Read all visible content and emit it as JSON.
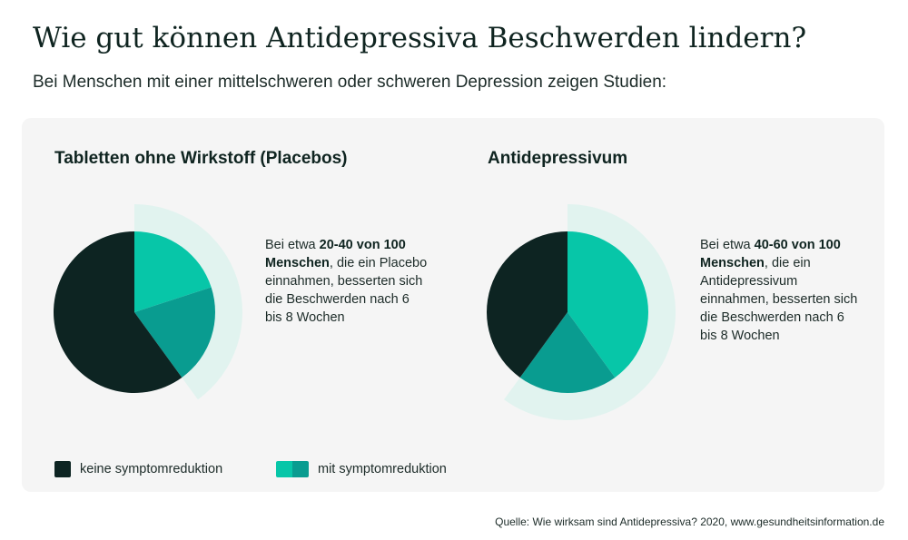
{
  "header": {
    "title": "Wie gut können Antidepressiva Beschwerden lindern?",
    "subtitle": "Bei Menschen mit einer mittelschweren oder schweren Depression zeigen Studien:"
  },
  "colors": {
    "no_reduction": "#0d2422",
    "with_reduction_low": "#07c6a8",
    "with_reduction_high": "#099c90",
    "range_band": "#e1f3ef",
    "panel_bg": "#f5f5f5"
  },
  "chart_data": [
    {
      "type": "pie",
      "title": "Tabletten ohne Wirkstoff (Placebos)",
      "unit": "von 100 Menschen",
      "slices": [
        {
          "label": "mit symptomreduktion",
          "value": 20,
          "color": "#07c6a8"
        },
        {
          "label": "mit symptomreduktion",
          "value": 20,
          "color": "#099c90"
        },
        {
          "label": "keine symptomreduktion",
          "value": 60,
          "color": "#0d2422"
        }
      ],
      "range": [
        20,
        40
      ],
      "description": {
        "prefix": "Bei etwa ",
        "bold": "20-40 von 100 Menschen",
        "suffix": ", die ein Placebo einnahmen, besserten sich die Beschwerden nach 6 bis 8 Wochen"
      }
    },
    {
      "type": "pie",
      "title": "Antidepressivum",
      "unit": "von 100 Menschen",
      "slices": [
        {
          "label": "mit symptomreduktion",
          "value": 40,
          "color": "#07c6a8"
        },
        {
          "label": "mit symptomreduktion",
          "value": 20,
          "color": "#099c90"
        },
        {
          "label": "keine symptomreduktion",
          "value": 40,
          "color": "#0d2422"
        }
      ],
      "range": [
        40,
        60
      ],
      "description": {
        "prefix": "Bei etwa ",
        "bold": "40-60 von 100 Menschen",
        "suffix": ", die ein Antidepressivum einnahmen, besserten sich die Beschwerden nach 6 bis 8 Wochen"
      }
    }
  ],
  "legend": {
    "no_reduction": "keine symptomreduktion",
    "with_reduction": "mit symptomreduktion"
  },
  "source": "Quelle: Wie wirksam sind Antidepressiva? 2020, www.gesundheitsinformation.de"
}
